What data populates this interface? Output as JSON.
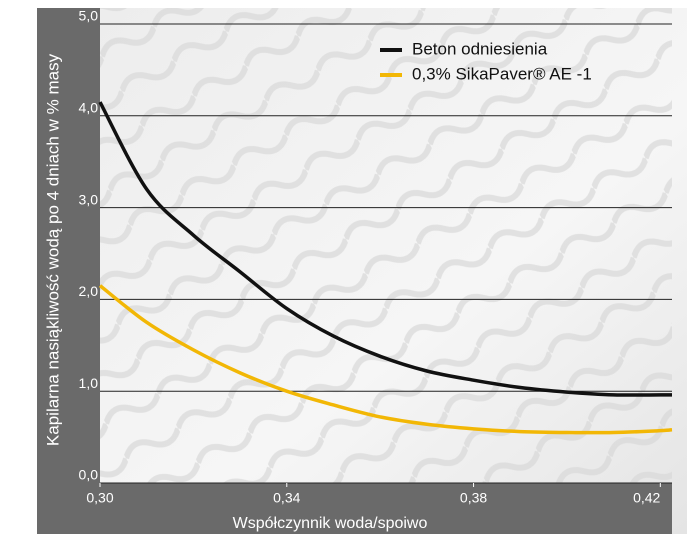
{
  "chart_data": {
    "type": "line",
    "x_label": "Współczynnik woda/spoiwo",
    "y_label": "Kapilarna nasiąkliwość wodą po 4 dniach w % masy",
    "x": [
      0.3,
      0.31,
      0.32,
      0.33,
      0.34,
      0.35,
      0.36,
      0.37,
      0.38,
      0.39,
      0.4,
      0.41,
      0.42,
      0.4225
    ],
    "series": [
      {
        "name": "Beton odniesienia",
        "color": "#111111",
        "values": [
          4.15,
          3.2,
          2.7,
          2.3,
          1.9,
          1.6,
          1.38,
          1.22,
          1.12,
          1.04,
          0.99,
          0.96,
          0.96,
          0.96
        ]
      },
      {
        "name": "0,3% SikaPaver® AE -1",
        "color": "#f2b705",
        "values": [
          2.15,
          1.75,
          1.45,
          1.2,
          1.0,
          0.85,
          0.72,
          0.64,
          0.59,
          0.56,
          0.55,
          0.55,
          0.57,
          0.58
        ]
      }
    ],
    "xlim": [
      0.3,
      0.4225
    ],
    "ylim": [
      0,
      5
    ],
    "xticks": [
      {
        "value": 0.3,
        "label": "0,30"
      },
      {
        "value": 0.34,
        "label": "0,34"
      },
      {
        "value": 0.38,
        "label": "0,38"
      },
      {
        "value": 0.42,
        "label": "0,42"
      }
    ],
    "yticks": [
      {
        "value": 0,
        "label": "0,0"
      },
      {
        "value": 1,
        "label": "1,0"
      },
      {
        "value": 2,
        "label": "2,0"
      },
      {
        "value": 3,
        "label": "3,0"
      },
      {
        "value": 4,
        "label": "4,0"
      },
      {
        "value": 5,
        "label": "5,0"
      }
    ],
    "grid": true,
    "legend": "top-right"
  }
}
